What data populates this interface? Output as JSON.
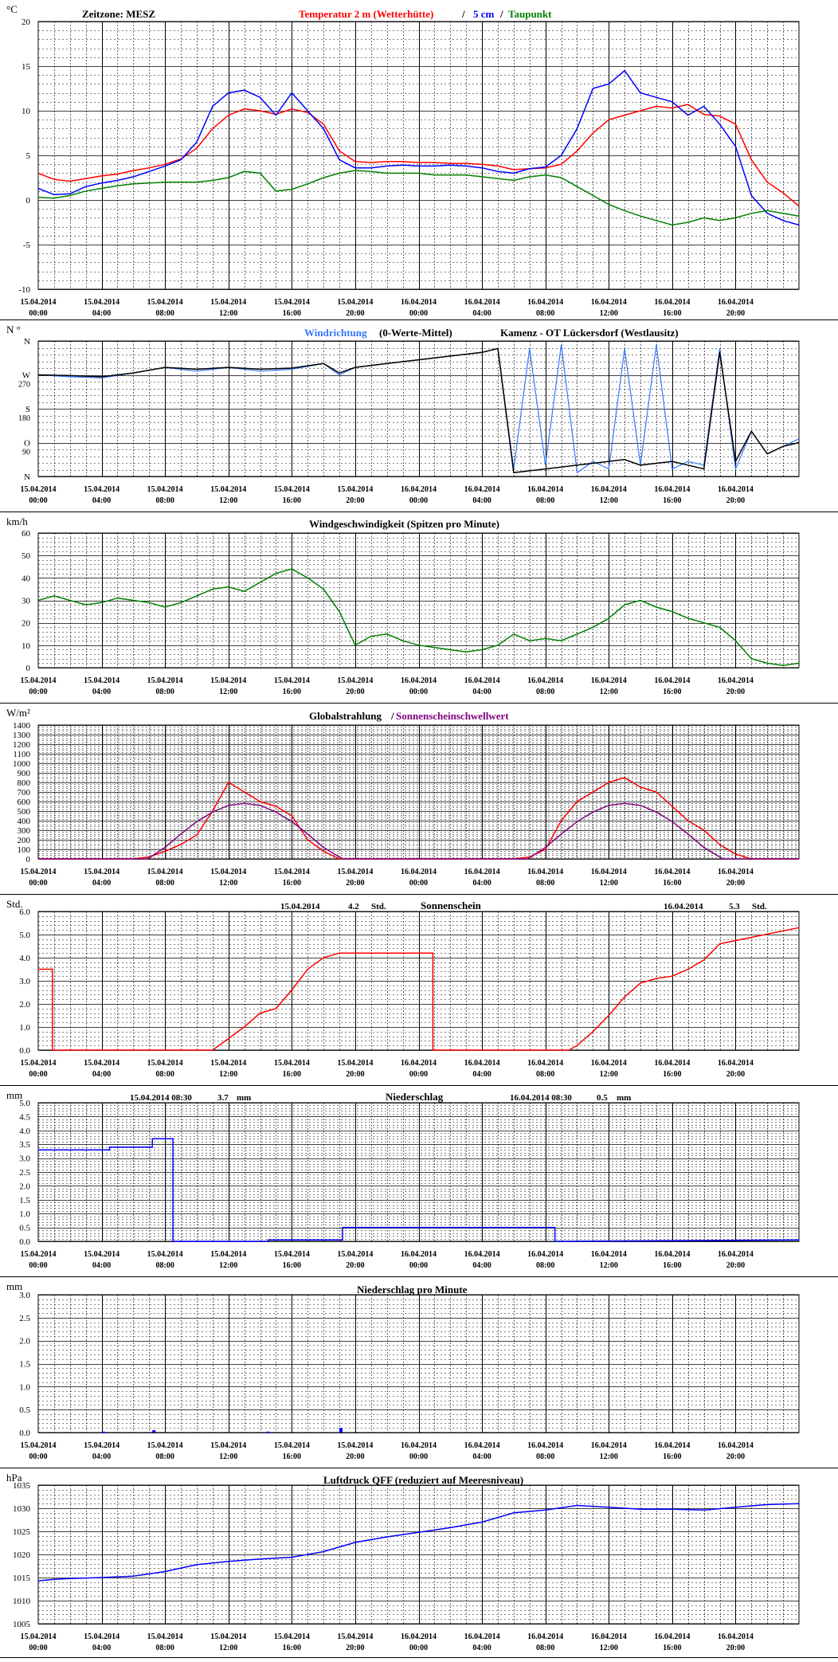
{
  "time_labels": {
    "dates": [
      "15.04.2014",
      "15.04.2014",
      "15.04.2014",
      "15.04.2014",
      "15.04.2014",
      "15.04.2014",
      "16.04.2014",
      "16.04.2014",
      "16.04.2014",
      "16.04.2014",
      "16.04.2014",
      "16.04.2014"
    ],
    "times": [
      "00:00",
      "04:00",
      "08:00",
      "12:00",
      "16:00",
      "20:00",
      "00:00",
      "04:00",
      "08:00",
      "12:00",
      "16:00",
      "20:00"
    ]
  },
  "colors": {
    "red": "#ff0000",
    "blue": "#0000ff",
    "green": "#008000",
    "black": "#000000",
    "lightblue": "#3377ff",
    "purple": "#800080",
    "grid": "#000000"
  },
  "chart_data": [
    {
      "id": "temperature",
      "type": "line",
      "unit": "°C",
      "title_parts": [
        "Zeitzone: MESZ",
        "Temperatur 2 m (Wetterhütte)",
        "/",
        "5 cm",
        "/",
        "Taupunkt"
      ],
      "x_hours": [
        0,
        48
      ],
      "ylim": [
        -10,
        20
      ],
      "y_ticks": [
        -10,
        -5,
        0,
        5,
        10,
        15,
        20
      ],
      "series": [
        {
          "name": "Temperatur 2 m (Wetterhütte)",
          "color": "red",
          "x": [
            0,
            1,
            2,
            3,
            4,
            5,
            6,
            7,
            8,
            9,
            10,
            11,
            12,
            13,
            14,
            15,
            16,
            17,
            18,
            19,
            20,
            21,
            22,
            23,
            24,
            25,
            26,
            27,
            28,
            29,
            30,
            31,
            32,
            33,
            34,
            35,
            36,
            37,
            38,
            39,
            40,
            41,
            42,
            43,
            44,
            45,
            46,
            47,
            48
          ],
          "y": [
            3.0,
            2.3,
            2.1,
            2.4,
            2.7,
            2.9,
            3.3,
            3.6,
            4.0,
            4.6,
            5.8,
            8.0,
            9.5,
            10.2,
            10.0,
            9.6,
            10.2,
            9.8,
            8.5,
            5.5,
            4.3,
            4.2,
            4.3,
            4.3,
            4.2,
            4.2,
            4.1,
            4.1,
            4.0,
            3.8,
            3.4,
            3.5,
            3.6,
            4.0,
            5.5,
            7.5,
            9.0,
            9.5,
            10.0,
            10.5,
            10.3,
            10.7,
            9.6,
            9.4,
            8.5,
            4.5,
            2.0,
            0.8,
            -0.7
          ]
        },
        {
          "name": "5 cm",
          "color": "blue",
          "x": [
            0,
            1,
            2,
            3,
            4,
            5,
            6,
            7,
            8,
            9,
            10,
            11,
            12,
            13,
            14,
            15,
            16,
            17,
            18,
            19,
            20,
            21,
            22,
            23,
            24,
            25,
            26,
            27,
            28,
            29,
            30,
            31,
            32,
            33,
            34,
            35,
            36,
            37,
            38,
            39,
            40,
            41,
            42,
            43,
            44,
            45,
            46,
            47,
            48
          ],
          "y": [
            1.3,
            0.6,
            0.7,
            1.5,
            1.9,
            2.2,
            2.6,
            3.2,
            3.8,
            4.5,
            6.5,
            10.5,
            12.0,
            12.3,
            11.5,
            9.5,
            12.0,
            10.0,
            8.0,
            4.5,
            3.6,
            3.6,
            3.8,
            3.9,
            3.8,
            3.8,
            3.9,
            3.8,
            3.6,
            3.2,
            3.0,
            3.5,
            3.7,
            5.0,
            8.0,
            12.5,
            13.0,
            14.5,
            12.0,
            11.5,
            11.0,
            9.5,
            10.5,
            8.5,
            6.0,
            0.5,
            -1.5,
            -2.3,
            -2.8
          ]
        },
        {
          "name": "Taupunkt",
          "color": "green",
          "x": [
            0,
            1,
            2,
            3,
            4,
            5,
            6,
            7,
            8,
            9,
            10,
            11,
            12,
            13,
            14,
            15,
            16,
            17,
            18,
            19,
            20,
            21,
            22,
            23,
            24,
            25,
            26,
            27,
            28,
            29,
            30,
            31,
            32,
            33,
            34,
            35,
            36,
            37,
            38,
            39,
            40,
            41,
            42,
            43,
            44,
            45,
            46,
            47,
            48
          ],
          "y": [
            0.3,
            0.2,
            0.5,
            1.0,
            1.3,
            1.6,
            1.8,
            1.9,
            2.0,
            2.0,
            2.0,
            2.2,
            2.5,
            3.2,
            3.0,
            1.0,
            1.2,
            1.8,
            2.5,
            3.0,
            3.3,
            3.2,
            3.0,
            3.0,
            3.0,
            2.8,
            2.8,
            2.8,
            2.6,
            2.4,
            2.2,
            2.6,
            2.8,
            2.5,
            1.5,
            0.5,
            -0.5,
            -1.2,
            -1.8,
            -2.3,
            -2.8,
            -2.5,
            -2.0,
            -2.3,
            -2.0,
            -1.5,
            -1.2,
            -1.5,
            -1.8
          ]
        }
      ]
    },
    {
      "id": "winddir",
      "type": "line",
      "unit": "N °",
      "title_parts": [
        "Windrichtung",
        "(0-Werte-Mittel)",
        "Kamenz - OT Lückersdorf (Westlausitz)"
      ],
      "x_hours": [
        0,
        48
      ],
      "ylim": [
        0,
        360
      ],
      "y_ticks": [
        0,
        90,
        180,
        270,
        360
      ],
      "y_tick_labels": [
        "N",
        "O",
        "S",
        "W",
        "N"
      ],
      "series": [
        {
          "name": "Windrichtung",
          "color": "lightblue",
          "x": [
            0,
            2,
            4,
            6,
            8,
            10,
            12,
            14,
            16,
            18,
            19,
            20,
            22,
            24,
            26,
            28,
            29,
            30,
            31,
            32,
            33,
            34,
            35,
            36,
            37,
            38,
            39,
            40,
            41,
            42,
            43,
            44,
            45,
            46,
            47,
            48
          ],
          "y": [
            270,
            265,
            262,
            275,
            290,
            280,
            290,
            280,
            285,
            300,
            270,
            290,
            300,
            310,
            320,
            330,
            340,
            20,
            340,
            30,
            350,
            10,
            40,
            20,
            340,
            30,
            350,
            20,
            40,
            30,
            340,
            20,
            120,
            60,
            80,
            100
          ]
        },
        {
          "name": "Mittel",
          "color": "black",
          "x": [
            0,
            2,
            4,
            6,
            8,
            10,
            12,
            14,
            16,
            18,
            19,
            20,
            22,
            24,
            26,
            28,
            29,
            30,
            31,
            32,
            33,
            34,
            35,
            36,
            37,
            38,
            39,
            40,
            41,
            42,
            43,
            44,
            45,
            46,
            47,
            48
          ],
          "y": [
            270,
            268,
            265,
            275,
            290,
            285,
            290,
            285,
            288,
            300,
            275,
            290,
            300,
            310,
            320,
            330,
            340,
            10,
            15,
            20,
            25,
            30,
            35,
            40,
            45,
            30,
            35,
            40,
            30,
            20,
            330,
            40,
            120,
            60,
            80,
            90
          ]
        }
      ]
    },
    {
      "id": "windspeed",
      "type": "line",
      "unit": "km/h",
      "title_parts": [
        "Windgeschwindigkeit (Spitzen pro Minute)"
      ],
      "x_hours": [
        0,
        48
      ],
      "ylim": [
        0,
        60
      ],
      "y_ticks": [
        0,
        10,
        20,
        30,
        40,
        50,
        60
      ],
      "series": [
        {
          "name": "Windgeschwindigkeit",
          "color": "green",
          "x": [
            0,
            1,
            2,
            3,
            4,
            5,
            6,
            7,
            8,
            9,
            10,
            11,
            12,
            13,
            14,
            15,
            16,
            17,
            18,
            19,
            20,
            21,
            22,
            23,
            24,
            25,
            26,
            27,
            28,
            29,
            30,
            31,
            32,
            33,
            34,
            35,
            36,
            37,
            38,
            39,
            40,
            41,
            42,
            43,
            44,
            45,
            46,
            47,
            48
          ],
          "y": [
            30,
            32,
            30,
            28,
            29,
            31,
            30,
            29,
            27,
            29,
            32,
            35,
            36,
            34,
            38,
            42,
            44,
            40,
            35,
            25,
            10,
            14,
            15,
            12,
            10,
            9,
            8,
            7,
            8,
            10,
            15,
            12,
            13,
            12,
            15,
            18,
            22,
            28,
            30,
            27,
            25,
            22,
            20,
            18,
            12,
            4,
            2,
            1,
            2
          ]
        }
      ]
    },
    {
      "id": "radiation",
      "type": "line",
      "unit": "W/m²",
      "title_parts": [
        "Globalstrahlung",
        "/",
        "Sonnenscheinschwellwert"
      ],
      "x_hours": [
        0,
        48
      ],
      "ylim": [
        0,
        1400
      ],
      "y_ticks": [
        0,
        100,
        200,
        300,
        400,
        500,
        600,
        700,
        800,
        900,
        1000,
        1100,
        1200,
        1300,
        1400
      ],
      "series": [
        {
          "name": "Globalstrahlung",
          "color": "red",
          "x": [
            0,
            6,
            7,
            8,
            9,
            10,
            11,
            12,
            13,
            14,
            15,
            16,
            17,
            18,
            19,
            20,
            30,
            31,
            32,
            33,
            34,
            35,
            36,
            37,
            38,
            39,
            40,
            41,
            42,
            43,
            44,
            45,
            46,
            47,
            48
          ],
          "y": [
            0,
            0,
            20,
            80,
            150,
            250,
            500,
            800,
            700,
            600,
            550,
            450,
            200,
            80,
            0,
            0,
            0,
            20,
            100,
            400,
            600,
            700,
            800,
            850,
            750,
            700,
            550,
            400,
            300,
            150,
            50,
            0,
            0,
            0,
            0
          ]
        },
        {
          "name": "Sonnenscheinschwellwert",
          "color": "purple",
          "x": [
            0,
            6.9,
            8,
            9,
            10,
            11,
            12,
            13,
            14,
            15,
            16,
            17,
            18,
            19.2,
            30.9,
            32,
            33,
            34,
            35,
            36,
            37,
            38,
            39,
            40,
            41,
            42,
            43,
            43.2,
            48
          ],
          "y": [
            0,
            0,
            120,
            260,
            390,
            490,
            560,
            580,
            560,
            490,
            390,
            260,
            120,
            0,
            0,
            120,
            260,
            390,
            490,
            560,
            580,
            560,
            490,
            390,
            260,
            120,
            20,
            0,
            0
          ]
        }
      ]
    },
    {
      "id": "sunshine",
      "type": "line",
      "unit": "Std.",
      "title_parts": [
        "15.04.2014",
        "4.2",
        "Std.",
        "Sonnenschein",
        "16.04.2014",
        "5.3",
        "Std."
      ],
      "x_hours": [
        0,
        48
      ],
      "ylim": [
        0,
        6
      ],
      "y_ticks": [
        0,
        1,
        2,
        3,
        4,
        5,
        6
      ],
      "y_tick_format": 1,
      "series": [
        {
          "name": "Sonnenschein",
          "color": "red",
          "x": [
            0,
            0.9,
            0.9,
            11,
            12,
            13,
            14,
            15,
            16,
            17,
            18,
            19,
            20,
            24.9,
            24.9,
            33.5,
            34,
            35,
            36,
            37,
            38,
            39,
            40,
            41,
            42,
            43,
            48
          ],
          "y": [
            3.5,
            3.5,
            0,
            0,
            0.5,
            1.0,
            1.6,
            1.8,
            2.6,
            3.5,
            4.0,
            4.2,
            4.2,
            4.2,
            0,
            0,
            0.2,
            0.8,
            1.5,
            2.3,
            2.9,
            3.1,
            3.2,
            3.5,
            3.9,
            4.6,
            5.3
          ]
        }
      ]
    },
    {
      "id": "precip",
      "type": "line",
      "unit": "mm",
      "title_parts": [
        "15.04.2014 08:30",
        "3.7",
        "mm",
        "Niederschlag",
        "16.04.2014 08:30",
        "0.5",
        "mm"
      ],
      "x_hours": [
        0,
        48
      ],
      "ylim": [
        0,
        5
      ],
      "y_ticks": [
        0,
        0.5,
        1,
        1.5,
        2,
        2.5,
        3,
        3.5,
        4,
        4.5,
        5
      ],
      "y_tick_format": 1,
      "series": [
        {
          "name": "Niederschlag",
          "color": "blue",
          "x": [
            0,
            4.5,
            4.5,
            7.2,
            7.2,
            8.5,
            8.5,
            14.5,
            14.5,
            19.2,
            19.2,
            32.6,
            32.6,
            48
          ],
          "y": [
            3.3,
            3.3,
            3.4,
            3.4,
            3.7,
            3.7,
            0,
            0,
            0.05,
            0.05,
            0.5,
            0.5,
            0,
            0.05
          ]
        }
      ]
    },
    {
      "id": "precip_min",
      "type": "bar",
      "unit": "mm",
      "title_parts": [
        "Niederschlag pro Minute"
      ],
      "x_hours": [
        0,
        48
      ],
      "ylim": [
        0,
        3
      ],
      "y_ticks": [
        0,
        0.5,
        1,
        1.5,
        2,
        2.5,
        3
      ],
      "y_tick_format": 1,
      "series": [
        {
          "name": "Niederschlag pro Minute",
          "color": "blue",
          "x": [
            4.1,
            7.3,
            14.5,
            19.1
          ],
          "y": [
            0.02,
            0.05,
            0.02,
            0.1
          ]
        }
      ]
    },
    {
      "id": "pressure",
      "type": "line",
      "unit": "hPa",
      "title_parts": [
        "Luftdruck QFF (reduziert auf Meeresniveau)"
      ],
      "x_hours": [
        0,
        48
      ],
      "ylim": [
        1005,
        1035
      ],
      "y_ticks": [
        1005,
        1010,
        1015,
        1020,
        1025,
        1030,
        1035
      ],
      "series": [
        {
          "name": "Luftdruck",
          "color": "blue",
          "x": [
            0,
            1,
            2,
            4,
            6,
            8,
            10,
            12,
            14,
            16,
            18,
            20,
            22,
            24,
            26,
            28,
            30,
            32,
            34,
            36,
            38,
            40,
            42,
            44,
            46,
            48
          ],
          "y": [
            1014.3,
            1014.6,
            1014.8,
            1015.0,
            1015.3,
            1016.3,
            1017.8,
            1018.5,
            1019.0,
            1019.4,
            1020.6,
            1022.6,
            1023.8,
            1024.8,
            1025.8,
            1027.0,
            1029.0,
            1029.6,
            1030.6,
            1030.2,
            1029.8,
            1029.8,
            1029.6,
            1030.2,
            1030.8,
            1031.0
          ]
        }
      ]
    }
  ]
}
